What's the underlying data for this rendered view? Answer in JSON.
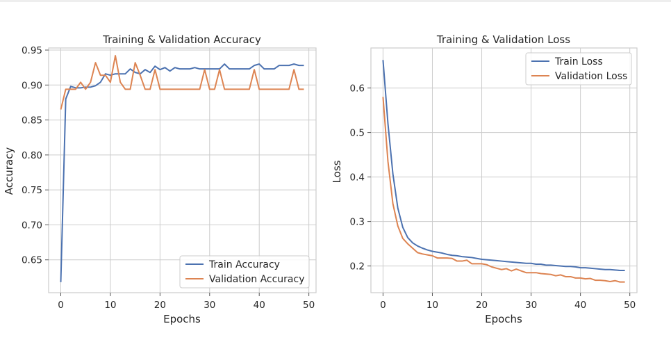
{
  "chart_data": [
    {
      "type": "line",
      "title": "Training & Validation Accuracy",
      "xlabel": "Epochs",
      "ylabel": "Accuracy",
      "xlim": [
        -2.45,
        51.45
      ],
      "ylim": [
        0.603,
        0.953
      ],
      "xticks": [
        0,
        10,
        20,
        30,
        40,
        50
      ],
      "yticks": [
        0.65,
        0.7,
        0.75,
        0.8,
        0.85,
        0.9,
        0.95
      ],
      "ytick_labels": [
        "0.65",
        "0.70",
        "0.75",
        "0.80",
        "0.85",
        "0.90",
        "0.95"
      ],
      "grid": true,
      "legend_position": "lower right",
      "x": [
        0,
        1,
        2,
        3,
        4,
        5,
        6,
        7,
        8,
        9,
        10,
        11,
        12,
        13,
        14,
        15,
        16,
        17,
        18,
        19,
        20,
        21,
        22,
        23,
        24,
        25,
        26,
        27,
        28,
        29,
        30,
        31,
        32,
        33,
        34,
        35,
        36,
        37,
        38,
        39,
        40,
        41,
        42,
        43,
        44,
        45,
        46,
        47,
        48,
        49
      ],
      "series": [
        {
          "name": "Train Accuracy",
          "color": "#4c72b0",
          "values": [
            0.618,
            0.88,
            0.898,
            0.896,
            0.896,
            0.897,
            0.897,
            0.899,
            0.904,
            0.916,
            0.914,
            0.916,
            0.916,
            0.916,
            0.923,
            0.918,
            0.916,
            0.922,
            0.918,
            0.927,
            0.922,
            0.925,
            0.92,
            0.925,
            0.923,
            0.923,
            0.923,
            0.925,
            0.923,
            0.923,
            0.923,
            0.923,
            0.923,
            0.93,
            0.923,
            0.923,
            0.923,
            0.923,
            0.923,
            0.928,
            0.93,
            0.923,
            0.923,
            0.923,
            0.928,
            0.928,
            0.928,
            0.93,
            0.928,
            0.928
          ]
        },
        {
          "name": "Validation Accuracy",
          "color": "#dd8452",
          "values": [
            0.865,
            0.894,
            0.894,
            0.894,
            0.904,
            0.894,
            0.904,
            0.932,
            0.914,
            0.914,
            0.904,
            0.942,
            0.904,
            0.894,
            0.894,
            0.932,
            0.914,
            0.894,
            0.894,
            0.922,
            0.894,
            0.894,
            0.894,
            0.894,
            0.894,
            0.894,
            0.894,
            0.894,
            0.894,
            0.922,
            0.894,
            0.894,
            0.922,
            0.894,
            0.894,
            0.894,
            0.894,
            0.894,
            0.894,
            0.922,
            0.894,
            0.894,
            0.894,
            0.894,
            0.894,
            0.894,
            0.894,
            0.922,
            0.894,
            0.894
          ]
        }
      ]
    },
    {
      "type": "line",
      "title": "Training & Validation Loss",
      "xlabel": "Epochs",
      "ylabel": "Loss",
      "xlim": [
        -2.45,
        51.45
      ],
      "ylim": [
        0.14,
        0.69
      ],
      "xticks": [
        0,
        10,
        20,
        30,
        40,
        50
      ],
      "yticks": [
        0.2,
        0.3,
        0.4,
        0.5,
        0.6
      ],
      "ytick_labels": [
        "0.2",
        "0.3",
        "0.4",
        "0.5",
        "0.6"
      ],
      "grid": true,
      "legend_position": "upper right",
      "x": [
        0,
        1,
        2,
        3,
        4,
        5,
        6,
        7,
        8,
        9,
        10,
        11,
        12,
        13,
        14,
        15,
        16,
        17,
        18,
        19,
        20,
        21,
        22,
        23,
        24,
        25,
        26,
        27,
        28,
        29,
        30,
        31,
        32,
        33,
        34,
        35,
        36,
        37,
        38,
        39,
        40,
        41,
        42,
        43,
        44,
        45,
        46,
        47,
        48,
        49
      ],
      "series": [
        {
          "name": "Train Loss",
          "color": "#4c72b0",
          "values": [
            0.663,
            0.52,
            0.407,
            0.33,
            0.287,
            0.264,
            0.252,
            0.245,
            0.24,
            0.236,
            0.233,
            0.231,
            0.229,
            0.226,
            0.224,
            0.223,
            0.221,
            0.22,
            0.219,
            0.217,
            0.215,
            0.214,
            0.213,
            0.212,
            0.211,
            0.21,
            0.209,
            0.208,
            0.207,
            0.206,
            0.206,
            0.204,
            0.204,
            0.202,
            0.202,
            0.201,
            0.2,
            0.199,
            0.199,
            0.198,
            0.196,
            0.196,
            0.195,
            0.194,
            0.193,
            0.192,
            0.192,
            0.191,
            0.19,
            0.19
          ]
        },
        {
          "name": "Validation Loss",
          "color": "#dd8452",
          "values": [
            0.58,
            0.435,
            0.34,
            0.29,
            0.262,
            0.25,
            0.24,
            0.23,
            0.227,
            0.225,
            0.223,
            0.218,
            0.218,
            0.218,
            0.217,
            0.211,
            0.211,
            0.213,
            0.205,
            0.205,
            0.205,
            0.203,
            0.198,
            0.195,
            0.192,
            0.194,
            0.189,
            0.193,
            0.189,
            0.185,
            0.185,
            0.185,
            0.183,
            0.182,
            0.181,
            0.178,
            0.18,
            0.176,
            0.176,
            0.173,
            0.173,
            0.171,
            0.172,
            0.168,
            0.168,
            0.167,
            0.165,
            0.167,
            0.164,
            0.164
          ]
        }
      ]
    }
  ]
}
